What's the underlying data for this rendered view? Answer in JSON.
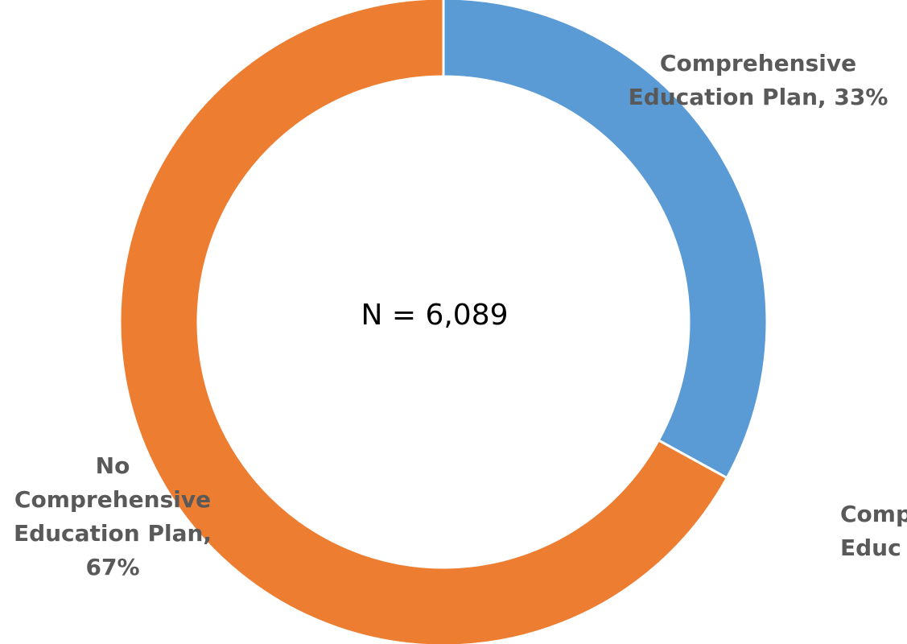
{
  "chart_data": {
    "type": "pie",
    "variant": "donut",
    "center_label": "N = 6,089",
    "slices": [
      {
        "category": "Comprehensive Education Plan",
        "value": 33,
        "color": "#5B9BD5",
        "label_lines": [
          "Comprehensive",
          "Education Plan, 33%"
        ]
      },
      {
        "category": "No Comprehensive Education Plan",
        "value": 67,
        "color": "#ED7D31",
        "label_lines": [
          "No",
          "Comprehensive",
          "Education Plan,",
          "67%"
        ]
      }
    ],
    "clipped_label_lines": [
      "Comp",
      "Educ"
    ],
    "legend": "none"
  }
}
